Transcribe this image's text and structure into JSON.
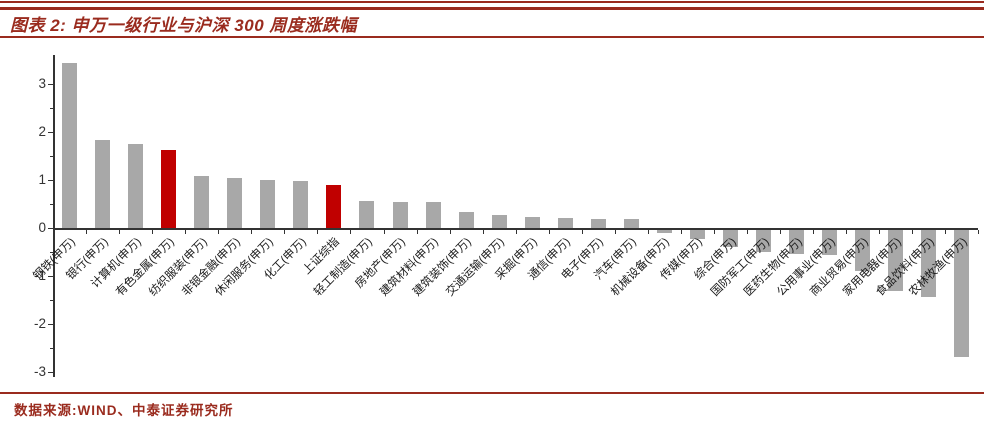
{
  "header": {
    "title": "图表 2:  申万一级行业与沪深 300  周度涨跌幅"
  },
  "footer": {
    "source": "数据来源:WIND、中泰证券研究所"
  },
  "colors": {
    "accent_red": "#9a2b1e",
    "bar_gray": "#a8a8a8",
    "bar_red": "#c00000",
    "axis": "#333333"
  },
  "chart_data": {
    "type": "bar",
    "title": "申万一级行业与沪深300 周度涨跌幅",
    "xlabel": "",
    "ylabel": "",
    "ylim": [
      -3.1,
      3.6
    ],
    "yticks": [
      3,
      2,
      1,
      0,
      -1,
      -2,
      -3
    ],
    "grid": false,
    "legend": false,
    "highlight_color_note": "red bars = index / highlighted series, gray = industries",
    "categories": [
      "钢铁(申万)",
      "银行(申万)",
      "计算机(申万)",
      "有色金属(申万)",
      "纺织服装(申万)",
      "非银金融(申万)",
      "休闲服务(申万)",
      "化工(申万)",
      "上证综指",
      "轻工制造(申万)",
      "房地产(申万)",
      "建筑材料(申万)",
      "建筑装饰(申万)",
      "交通运输(申万)",
      "采掘(申万)",
      "通信(申万)",
      "电子(申万)",
      "汽车(申万)",
      "机械设备(申万)",
      "传媒(申万)",
      "综合(申万)",
      "国防军工(申万)",
      "医药生物(申万)",
      "公用事业(申万)",
      "商业贸易(申万)",
      "家用电器(申万)",
      "食品饮料(申万)",
      "农林牧渔(申万)"
    ],
    "values": [
      3.43,
      1.84,
      1.75,
      1.63,
      1.08,
      1.04,
      1.0,
      0.97,
      0.9,
      0.56,
      0.54,
      0.54,
      0.34,
      0.27,
      0.22,
      0.21,
      0.19,
      0.18,
      -0.06,
      -0.18,
      -0.35,
      -0.45,
      -0.51,
      -0.52,
      -0.85,
      -1.28,
      -1.4,
      -2.64
    ],
    "red_indices": [
      3,
      8
    ]
  }
}
